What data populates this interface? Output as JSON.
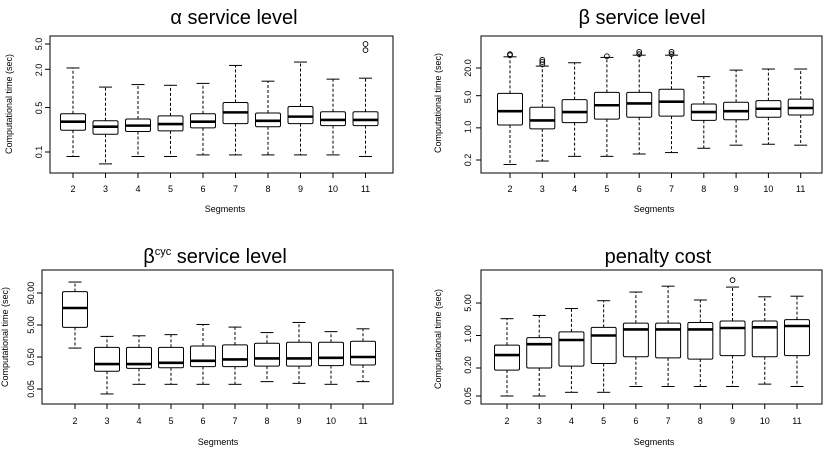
{
  "figure": {
    "panels": [
      {
        "title_symbol": "α",
        "title_sup": "",
        "title_text": "service level",
        "xlabel": "Segments",
        "ylabel": "Computational time (sec)",
        "yticks": [
          "0.1",
          "0.5",
          "2.0",
          "5.0"
        ]
      },
      {
        "title_symbol": "β",
        "title_sup": "",
        "title_text": "service level",
        "xlabel": "Segments",
        "ylabel": "Computational time (sec)",
        "yticks": [
          "0.2",
          "1.0",
          "5.0",
          "20.0"
        ]
      },
      {
        "title_symbol": "β",
        "title_sup": "cyc",
        "title_text": "service level",
        "xlabel": "Segments",
        "ylabel": "Computational time (sec)",
        "yticks": [
          "0.05",
          "0.50",
          "5.00",
          "50.00"
        ]
      },
      {
        "title_symbol": "",
        "title_sup": "",
        "title_text": "penalty cost",
        "xlabel": "Segments",
        "ylabel": "Computational time (sec)",
        "yticks": [
          "0.05",
          "0.20",
          "1.00",
          "5.00"
        ]
      }
    ]
  },
  "chart_data": [
    {
      "type": "boxplot",
      "title": "α service level",
      "xlabel": "Segments",
      "ylabel": "Computational time (sec)",
      "yscale": "log",
      "ylim": [
        0.06,
        6.0
      ],
      "categories": [
        "2",
        "3",
        "4",
        "5",
        "6",
        "7",
        "8",
        "9",
        "10",
        "11"
      ],
      "boxes": [
        {
          "min": 0.085,
          "q1": 0.22,
          "median": 0.3,
          "q3": 0.4,
          "max": 2.1,
          "outliers": []
        },
        {
          "min": 0.065,
          "q1": 0.19,
          "median": 0.25,
          "q3": 0.31,
          "max": 1.05,
          "outliers": []
        },
        {
          "min": 0.085,
          "q1": 0.21,
          "median": 0.26,
          "q3": 0.33,
          "max": 1.15,
          "outliers": []
        },
        {
          "min": 0.085,
          "q1": 0.215,
          "median": 0.275,
          "q3": 0.37,
          "max": 1.12,
          "outliers": []
        },
        {
          "min": 0.09,
          "q1": 0.24,
          "median": 0.3,
          "q3": 0.4,
          "max": 1.2,
          "outliers": []
        },
        {
          "min": 0.09,
          "q1": 0.28,
          "median": 0.42,
          "q3": 0.6,
          "max": 2.3,
          "outliers": []
        },
        {
          "min": 0.09,
          "q1": 0.25,
          "median": 0.31,
          "q3": 0.41,
          "max": 1.3,
          "outliers": []
        },
        {
          "min": 0.09,
          "q1": 0.28,
          "median": 0.36,
          "q3": 0.52,
          "max": 2.6,
          "outliers": []
        },
        {
          "min": 0.09,
          "q1": 0.26,
          "median": 0.32,
          "q3": 0.43,
          "max": 1.4,
          "outliers": []
        },
        {
          "min": 0.085,
          "q1": 0.26,
          "median": 0.32,
          "q3": 0.43,
          "max": 1.45,
          "outliers": [
            4.0,
            5.0
          ]
        }
      ]
    },
    {
      "type": "boxplot",
      "title": "β service level",
      "xlabel": "Segments",
      "ylabel": "Computational time (sec)",
      "yscale": "log",
      "ylim": [
        0.15,
        50
      ],
      "categories": [
        "2",
        "3",
        "4",
        "5",
        "6",
        "7",
        "8",
        "9",
        "10",
        "11"
      ],
      "boxes": [
        {
          "min": 0.16,
          "q1": 1.15,
          "median": 2.3,
          "q3": 5.6,
          "max": 35,
          "outliers": [
            38,
            40
          ]
        },
        {
          "min": 0.19,
          "q1": 0.95,
          "median": 1.45,
          "q3": 2.8,
          "max": 22,
          "outliers": [
            24,
            27,
            30
          ]
        },
        {
          "min": 0.24,
          "q1": 1.3,
          "median": 2.2,
          "q3": 4.1,
          "max": 26,
          "outliers": []
        },
        {
          "min": 0.24,
          "q1": 1.55,
          "median": 3.1,
          "q3": 5.9,
          "max": 34,
          "outliers": [
            36
          ]
        },
        {
          "min": 0.27,
          "q1": 1.7,
          "median": 3.4,
          "q3": 5.9,
          "max": 38,
          "outliers": [
            40,
            45
          ]
        },
        {
          "min": 0.29,
          "q1": 1.8,
          "median": 3.7,
          "q3": 6.9,
          "max": 38,
          "outliers": [
            40,
            45
          ]
        },
        {
          "min": 0.36,
          "q1": 1.45,
          "median": 2.2,
          "q3": 3.3,
          "max": 13,
          "outliers": []
        },
        {
          "min": 0.42,
          "q1": 1.5,
          "median": 2.3,
          "q3": 3.6,
          "max": 18,
          "outliers": []
        },
        {
          "min": 0.44,
          "q1": 1.7,
          "median": 2.6,
          "q3": 3.9,
          "max": 19,
          "outliers": []
        },
        {
          "min": 0.42,
          "q1": 1.9,
          "median": 2.7,
          "q3": 4.2,
          "max": 19,
          "outliers": []
        }
      ]
    },
    {
      "type": "boxplot",
      "title": "β^cyc service level",
      "xlabel": "Segments",
      "ylabel": "Computational time (sec)",
      "yscale": "log",
      "ylim": [
        0.028,
        160
      ],
      "categories": [
        "2",
        "3",
        "4",
        "5",
        "6",
        "7",
        "8",
        "9",
        "10",
        "11"
      ],
      "boxes": [
        {
          "min": 0.95,
          "q1": 4.2,
          "median": 17,
          "q3": 55,
          "max": 110,
          "outliers": []
        },
        {
          "min": 0.035,
          "q1": 0.18,
          "median": 0.3,
          "q3": 1.0,
          "max": 2.2,
          "outliers": []
        },
        {
          "min": 0.07,
          "q1": 0.22,
          "median": 0.3,
          "q3": 1.0,
          "max": 2.3,
          "outliers": []
        },
        {
          "min": 0.07,
          "q1": 0.23,
          "median": 0.33,
          "q3": 1.0,
          "max": 2.5,
          "outliers": []
        },
        {
          "min": 0.07,
          "q1": 0.25,
          "median": 0.38,
          "q3": 1.1,
          "max": 5.2,
          "outliers": []
        },
        {
          "min": 0.07,
          "q1": 0.25,
          "median": 0.42,
          "q3": 1.2,
          "max": 4.3,
          "outliers": []
        },
        {
          "min": 0.085,
          "q1": 0.26,
          "median": 0.45,
          "q3": 1.35,
          "max": 2.9,
          "outliers": []
        },
        {
          "min": 0.075,
          "q1": 0.26,
          "median": 0.45,
          "q3": 1.45,
          "max": 6.0,
          "outliers": []
        },
        {
          "min": 0.07,
          "q1": 0.27,
          "median": 0.47,
          "q3": 1.45,
          "max": 3.1,
          "outliers": []
        },
        {
          "min": 0.085,
          "q1": 0.28,
          "median": 0.5,
          "q3": 1.55,
          "max": 3.8,
          "outliers": []
        }
      ]
    },
    {
      "type": "boxplot",
      "title": "penalty cost",
      "xlabel": "Segments",
      "ylabel": "Computational time (sec)",
      "yscale": "log",
      "ylim": [
        0.045,
        18
      ],
      "categories": [
        "2",
        "3",
        "4",
        "5",
        "6",
        "7",
        "8",
        "9",
        "10",
        "11"
      ],
      "boxes": [
        {
          "min": 0.05,
          "q1": 0.18,
          "median": 0.38,
          "q3": 0.62,
          "max": 2.3,
          "outliers": []
        },
        {
          "min": 0.05,
          "q1": 0.2,
          "median": 0.65,
          "q3": 0.9,
          "max": 2.7,
          "outliers": []
        },
        {
          "min": 0.06,
          "q1": 0.22,
          "median": 0.8,
          "q3": 1.2,
          "max": 3.8,
          "outliers": []
        },
        {
          "min": 0.06,
          "q1": 0.25,
          "median": 1.0,
          "q3": 1.5,
          "max": 5.6,
          "outliers": []
        },
        {
          "min": 0.08,
          "q1": 0.35,
          "median": 1.35,
          "q3": 1.85,
          "max": 8.6,
          "outliers": []
        },
        {
          "min": 0.08,
          "q1": 0.33,
          "median": 1.35,
          "q3": 1.85,
          "max": 11.5,
          "outliers": []
        },
        {
          "min": 0.08,
          "q1": 0.31,
          "median": 1.35,
          "q3": 1.9,
          "max": 5.8,
          "outliers": []
        },
        {
          "min": 0.08,
          "q1": 0.37,
          "median": 1.45,
          "q3": 2.05,
          "max": 11.0,
          "outliers": [
            15.5
          ]
        },
        {
          "min": 0.09,
          "q1": 0.35,
          "median": 1.5,
          "q3": 2.05,
          "max": 6.8,
          "outliers": []
        },
        {
          "min": 0.08,
          "q1": 0.37,
          "median": 1.6,
          "q3": 2.2,
          "max": 7.0,
          "outliers": []
        }
      ]
    }
  ]
}
